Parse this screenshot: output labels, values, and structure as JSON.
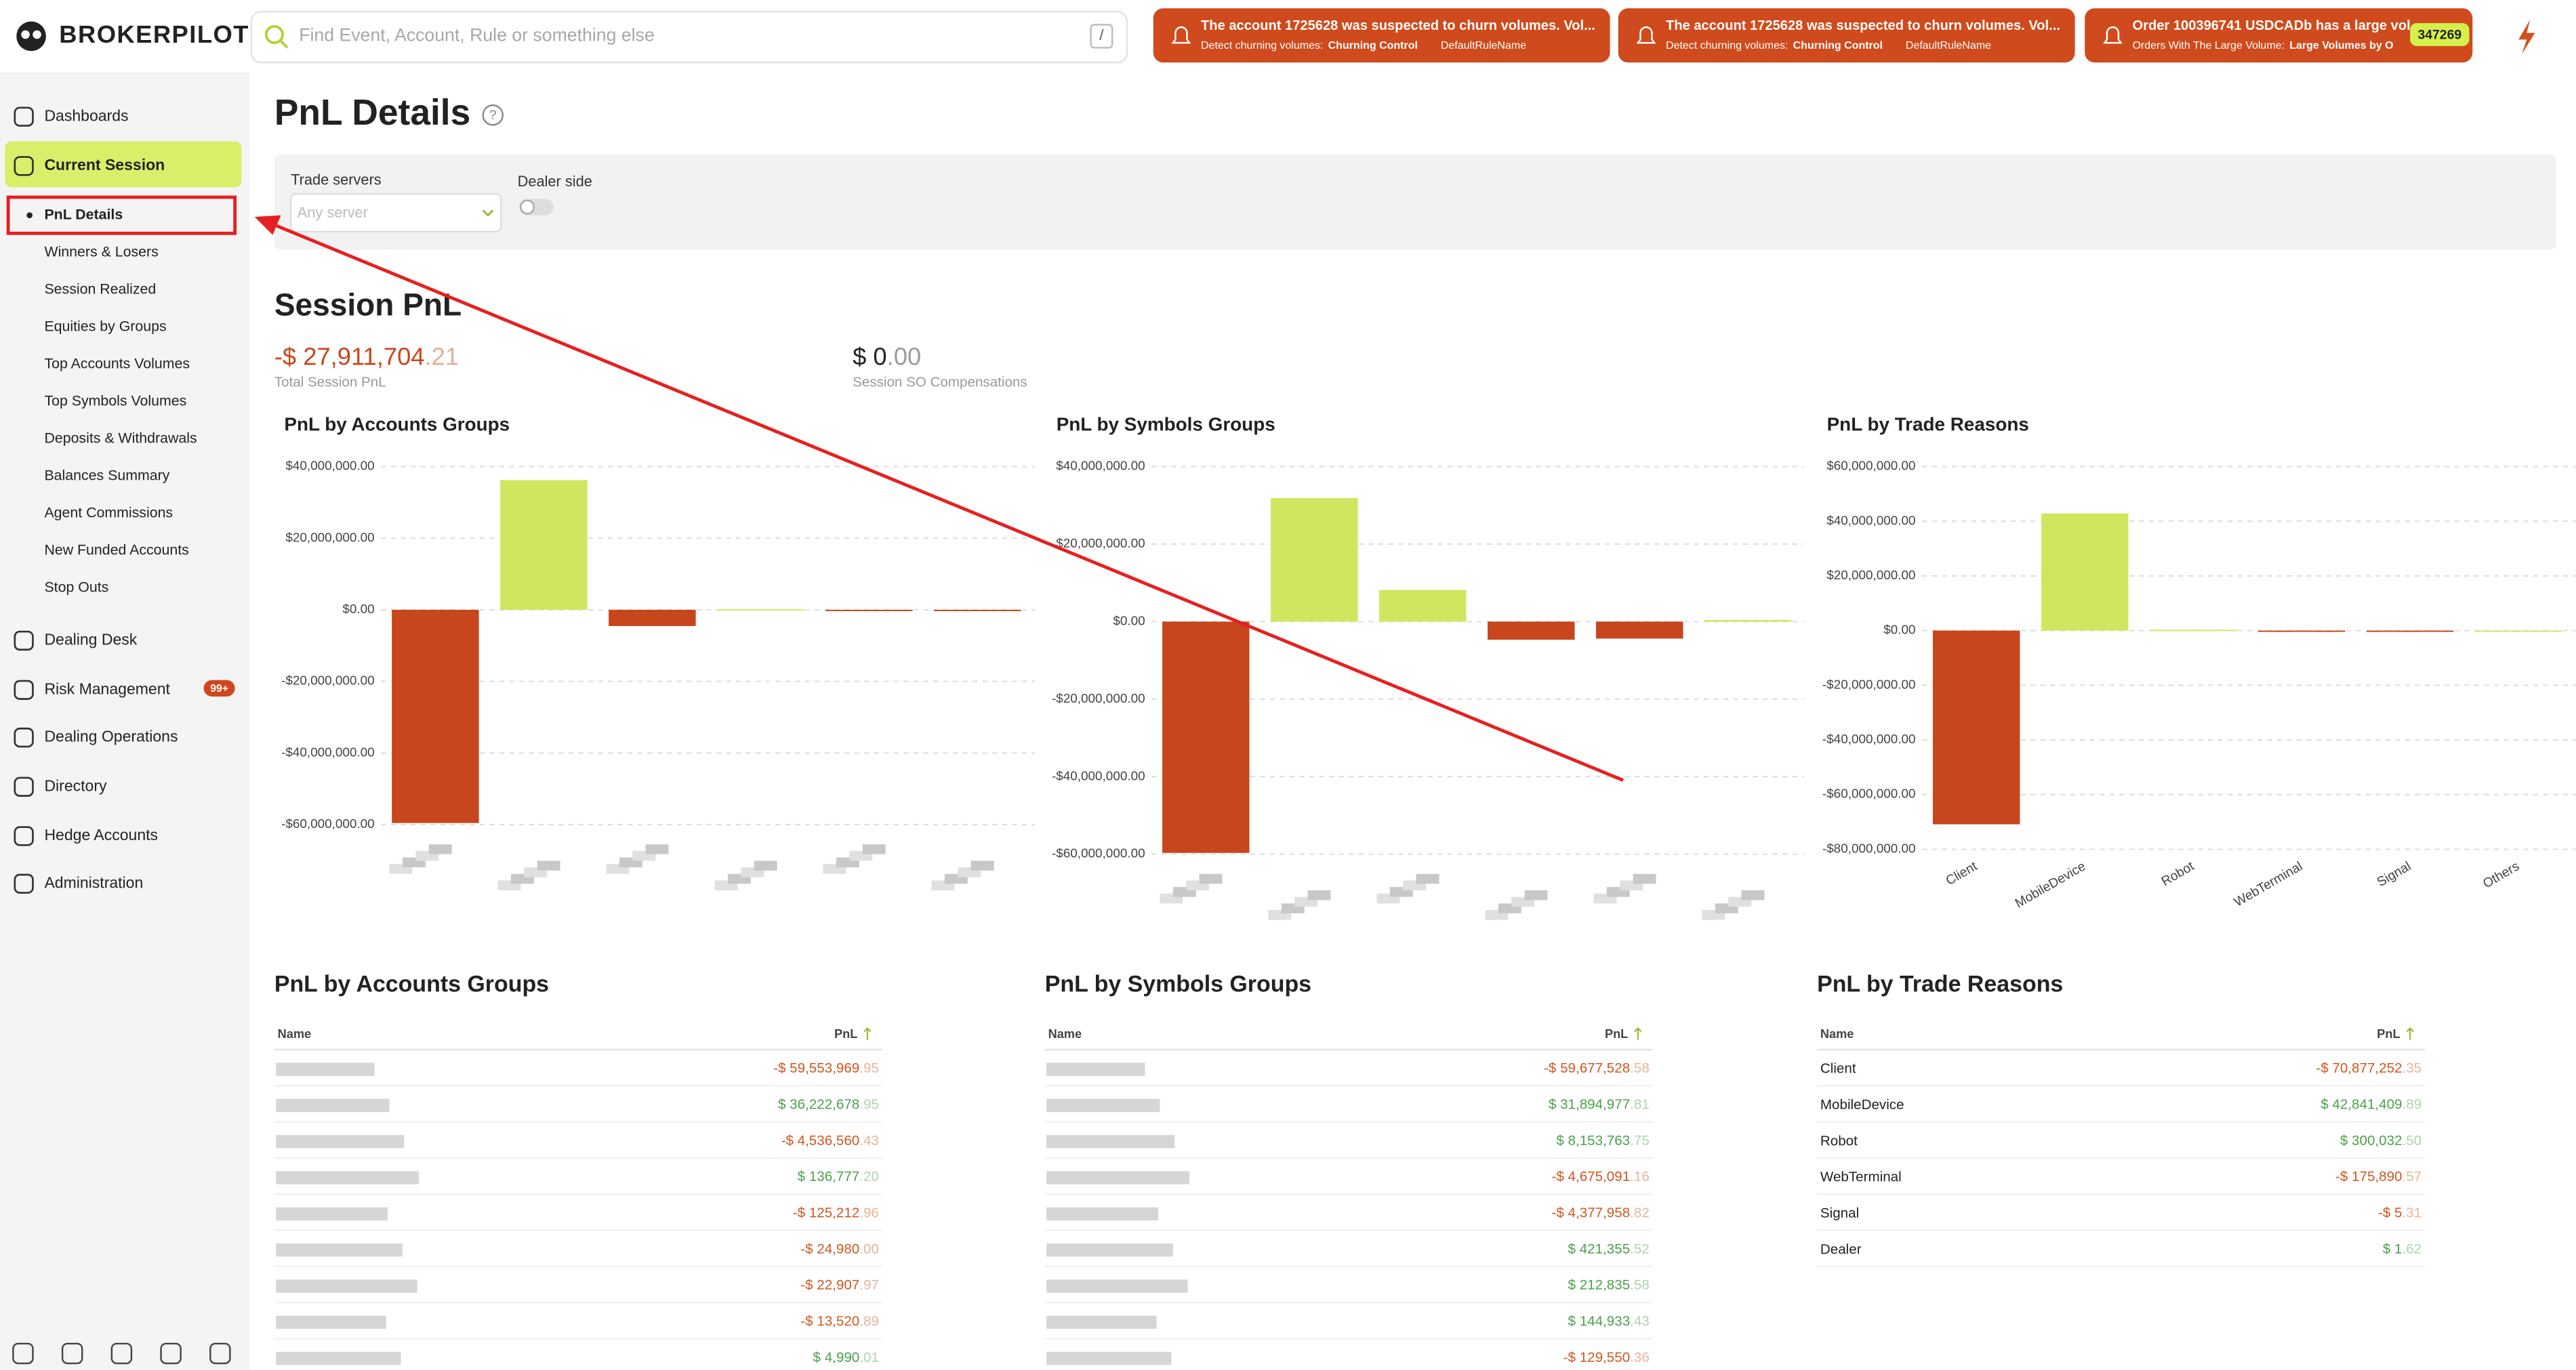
{
  "brand": "BROKERPILOT",
  "search": {
    "placeholder": "Find Event, Account, Rule or something else",
    "shortcut": "/"
  },
  "notifications": [
    {
      "title": "The account 1725628 was suspected to churn volumes. Vol...",
      "detail": "Detect churning volumes:",
      "rule": "Churning Control",
      "rule_name": "DefaultRuleName"
    },
    {
      "title": "The account 1725628 was suspected to churn volumes. Vol...",
      "detail": "Detect churning volumes:",
      "rule": "Churning Control",
      "rule_name": "DefaultRuleName"
    },
    {
      "title": "Order 100396741 USDCADb has a large vol",
      "detail": "Orders With The Large Volume:",
      "rule": "Large Volumes by O",
      "badge": "347269"
    }
  ],
  "sidebar": {
    "top_items": [
      "Dashboards",
      "Current Session"
    ],
    "sub_items": [
      "PnL Details",
      "Winners & Losers",
      "Session Realized",
      "Equities by Groups",
      "Top Accounts Volumes",
      "Top Symbols Volumes",
      "Deposits & Withdrawals",
      "Balances Summary",
      "Agent Commissions",
      "New Funded Accounts",
      "Stop Outs"
    ],
    "bottom_items": [
      "Dealing Desk",
      "Risk Management",
      "Dealing Operations",
      "Directory",
      "Hedge Accounts",
      "Administration"
    ],
    "risk_badge": "99+"
  },
  "page_title": "PnL Details",
  "filters": {
    "trade_servers": "Trade servers",
    "trade_servers_placeholder": "Any server",
    "dealer_side": "Dealer side"
  },
  "session_pnl": {
    "title": "Session PnL",
    "total": {
      "amount": "-$ 27,911,704",
      "cents": ".21",
      "label": "Total Session PnL"
    },
    "so": {
      "amount": "$ 0",
      "cents": ".00",
      "label": "Session SO Compensations"
    }
  },
  "charts": [
    {
      "type": "bar",
      "title": "PnL by Accounts Groups",
      "categories": [
        null,
        null,
        null,
        null,
        null,
        null
      ],
      "values": [
        -59553969.95,
        36222678.95,
        -4536560.43,
        136777.2,
        -125212.96,
        -24980.0
      ],
      "colors": {
        "negative": "#c8461b",
        "positive": "#d0e65f"
      },
      "ylim": [
        -60000000,
        40000000
      ],
      "yticks": [
        {
          "value": -60000000,
          "label": "-$60,000,000.00"
        },
        {
          "value": -40000000,
          "label": "-$40,000,000.00"
        },
        {
          "value": -20000000,
          "label": "-$20,000,000.00"
        },
        {
          "value": 0,
          "label": "$0.00"
        },
        {
          "value": 20000000,
          "label": "$20,000,000.00"
        },
        {
          "value": 40000000,
          "label": "$40,000,000.00"
        }
      ],
      "grid": true
    },
    {
      "type": "bar",
      "title": "PnL by Symbols Groups",
      "categories": [
        null,
        null,
        null,
        null,
        null,
        null
      ],
      "values": [
        -59677528.58,
        31894977.81,
        8153763.75,
        -4675091.16,
        -4377958.82,
        421355.52
      ],
      "colors": {
        "negative": "#c8461b",
        "positive": "#d0e65f"
      },
      "ylim": [
        -60000000,
        40000000
      ],
      "yticks": [
        {
          "value": -60000000,
          "label": "-$60,000,000.00"
        },
        {
          "value": -40000000,
          "label": "-$40,000,000.00"
        },
        {
          "value": -20000000,
          "label": "-$20,000,000.00"
        },
        {
          "value": 0,
          "label": "$0.00"
        },
        {
          "value": 20000000,
          "label": "$20,000,000.00"
        },
        {
          "value": 40000000,
          "label": "$40,000,000.00"
        }
      ],
      "grid": true
    },
    {
      "type": "bar",
      "title": "PnL by Trade Reasons",
      "categories": [
        "Client",
        "MobileDevice",
        "Robot",
        "WebTerminal",
        "Signal",
        "Others"
      ],
      "values": [
        -70877252.35,
        42841409.89,
        300032.5,
        -175890.57,
        -5.31,
        0
      ],
      "colors": {
        "negative": "#c8461b",
        "positive": "#d0e65f"
      },
      "ylim": [
        -80000000,
        60000000
      ],
      "yticks": [
        {
          "value": -80000000,
          "label": "-$80,000,000.00"
        },
        {
          "value": -60000000,
          "label": "-$60,000,000.00"
        },
        {
          "value": -40000000,
          "label": "-$40,000,000.00"
        },
        {
          "value": -20000000,
          "label": "-$20,000,000.00"
        },
        {
          "value": 0,
          "label": "$0.00"
        },
        {
          "value": 20000000,
          "label": "$20,000,000.00"
        },
        {
          "value": 40000000,
          "label": "$40,000,000.00"
        },
        {
          "value": 60000000,
          "label": "$60,000,000.00"
        }
      ],
      "grid": true
    }
  ],
  "tables": [
    {
      "title": "PnL by Accounts Groups",
      "columns": [
        "Name",
        "PnL"
      ],
      "rows": [
        {
          "amount": "-$ 59,553,969",
          "cents": ".95"
        },
        {
          "amount": "$ 36,222,678",
          "cents": ".95"
        },
        {
          "amount": "-$ 4,536,560",
          "cents": ".43"
        },
        {
          "amount": "$ 136,777",
          "cents": ".20"
        },
        {
          "amount": "-$ 125,212",
          "cents": ".96"
        },
        {
          "amount": "-$ 24,980",
          "cents": ".00"
        },
        {
          "amount": "-$ 22,907",
          "cents": ".97"
        },
        {
          "amount": "-$ 13,520",
          "cents": ".89"
        },
        {
          "amount": "$ 4,990",
          "cents": ".01"
        }
      ]
    },
    {
      "title": "PnL by Symbols Groups",
      "columns": [
        "Name",
        "PnL"
      ],
      "rows": [
        {
          "amount": "-$ 59,677,528",
          "cents": ".58"
        },
        {
          "amount": "$ 31,894,977",
          "cents": ".81"
        },
        {
          "amount": "$ 8,153,763",
          "cents": ".75"
        },
        {
          "amount": "-$ 4,675,091",
          "cents": ".16"
        },
        {
          "amount": "-$ 4,377,958",
          "cents": ".82"
        },
        {
          "amount": "$ 421,355",
          "cents": ".52"
        },
        {
          "amount": "$ 212,835",
          "cents": ".58"
        },
        {
          "amount": "$ 144,933",
          "cents": ".43"
        },
        {
          "amount": "-$ 129,550",
          "cents": ".36"
        }
      ]
    },
    {
      "title": "PnL by Trade Reasons",
      "columns": [
        "Name",
        "PnL"
      ],
      "rows": [
        {
          "name": "Client",
          "amount": "-$ 70,877,252",
          "cents": ".35"
        },
        {
          "name": "MobileDevice",
          "amount": "$ 42,841,409",
          "cents": ".89"
        },
        {
          "name": "Robot",
          "amount": "$ 300,032",
          "cents": ".50"
        },
        {
          "name": "WebTerminal",
          "amount": "-$ 175,890",
          "cents": ".57"
        },
        {
          "name": "Signal",
          "amount": "-$ 5",
          "cents": ".31"
        },
        {
          "name": "Dealer",
          "amount": "$ 1",
          "cents": ".62"
        }
      ]
    }
  ]
}
